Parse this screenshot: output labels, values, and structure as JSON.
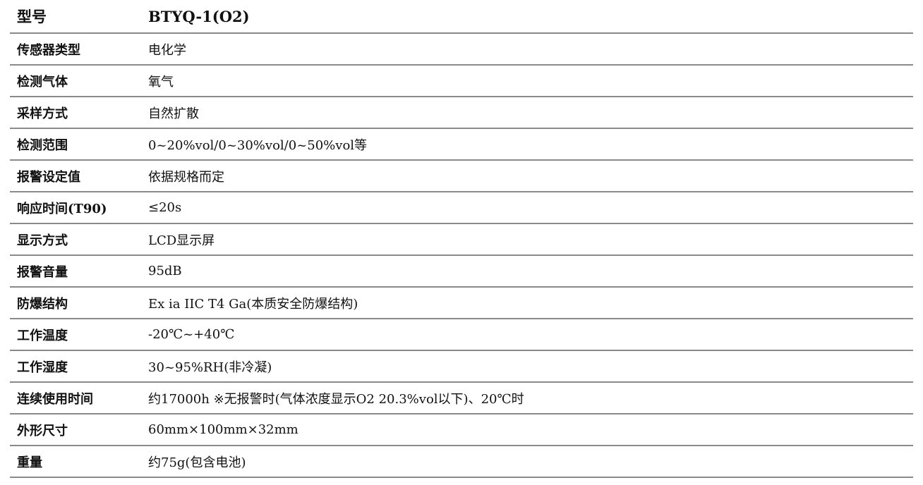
{
  "header": {
    "label": "型号",
    "value": "BTYQ-1(O2)"
  },
  "rows": [
    {
      "label": "传感器类型",
      "value": "电化学"
    },
    {
      "label": "检测气体",
      "value": "氧气"
    },
    {
      "label": "采样方式",
      "value": "自然扩散"
    },
    {
      "label": "检测范围",
      "value": "0~20%vol/0~30%vol/0~50%vol等"
    },
    {
      "label": "报警设定值",
      "value": "依据规格而定"
    },
    {
      "label": "响应时间(T90)",
      "value": "≤20s"
    },
    {
      "label": "显示方式",
      "value": "LCD显示屏"
    },
    {
      "label": "报警音量",
      "value": "95dB"
    },
    {
      "label": "防爆结构",
      "value": "Ex ia IIC T4 Ga(本质安全防爆结构)"
    },
    {
      "label": "工作温度",
      "value": "-20℃~+40℃"
    },
    {
      "label": "工作湿度",
      "value": "30~95%RH(非冷凝)"
    },
    {
      "label": "连续使用时间",
      "value": "约17000h  ※无报警时(气体浓度显示O2 20.3%vol以下)、20℃时"
    },
    {
      "label": "外形尺寸",
      "value": "60mm×100mm×32mm"
    },
    {
      "label": "重量",
      "value": "约75g(包含电池)"
    }
  ]
}
